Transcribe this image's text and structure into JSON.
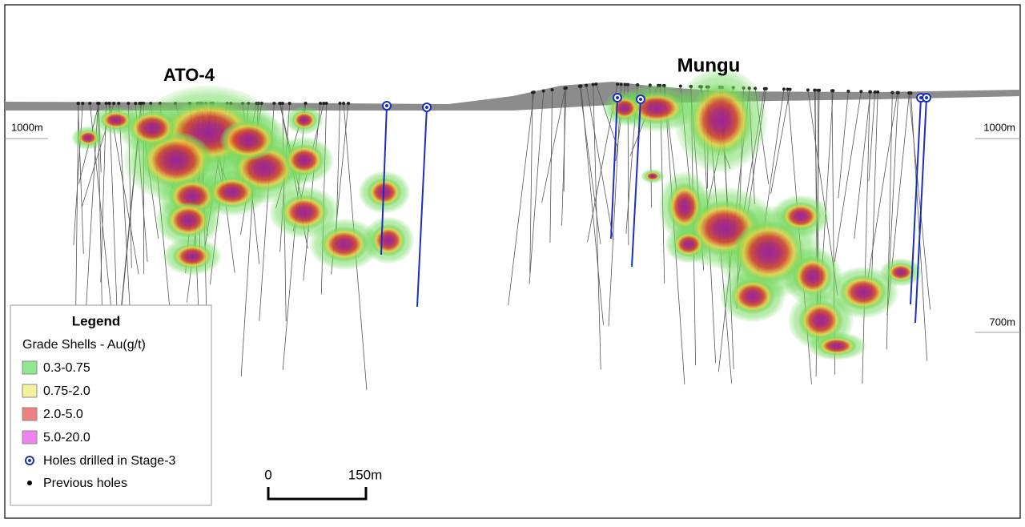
{
  "deposits": [
    "ATO-4",
    "Mungu"
  ],
  "elevations": {
    "left": [
      "1000m"
    ],
    "right": [
      "1000m",
      "700m"
    ]
  },
  "legend": {
    "title": "Legend",
    "subtitle": "Grade Shells - Au(g/t)",
    "items": [
      {
        "label": "0.3-0.75",
        "color": "#8ee88e"
      },
      {
        "label": "0.75-2.0",
        "color": "#f2f29a"
      },
      {
        "label": "2.0-5.0",
        "color": "#f08080"
      },
      {
        "label": "5.0-20.0",
        "color": "#ee82ee"
      }
    ],
    "holes": [
      "Holes  drilled in Stage-3",
      "Previous holes"
    ]
  },
  "scale_bar": [
    "0",
    "150m"
  ]
}
